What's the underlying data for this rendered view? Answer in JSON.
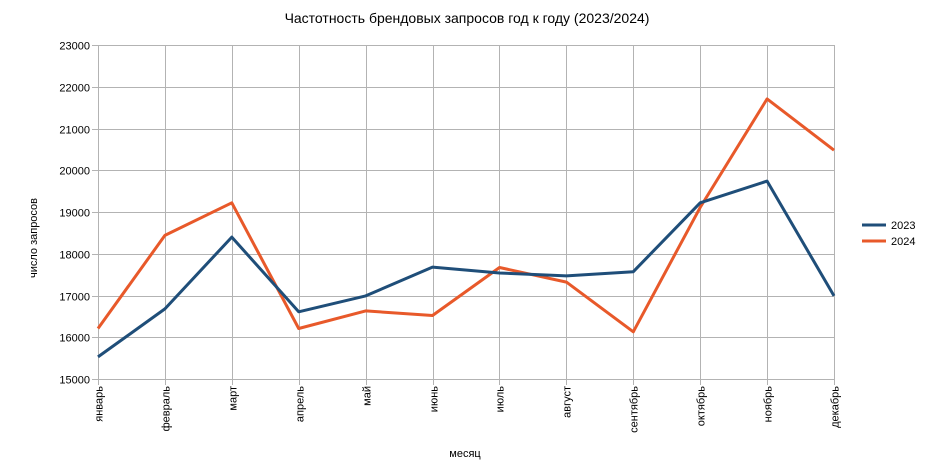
{
  "chart_data": {
    "type": "line",
    "title": "Частотность брендовых запросов год к году (2023/2024)",
    "xlabel": "месяц",
    "ylabel": "число запросов",
    "categories": [
      "январь",
      "февраль",
      "март",
      "апрель",
      "май",
      "июнь",
      "июль",
      "август",
      "сентябрь",
      "октябрь",
      "ноябрь",
      "декабрь"
    ],
    "ylim": [
      15000,
      23000
    ],
    "yticks": [
      15000,
      16000,
      17000,
      18000,
      19000,
      20000,
      21000,
      22000,
      23000
    ],
    "grid": true,
    "legend_position": "right",
    "series": [
      {
        "name": "2023",
        "color": "#1f4e79",
        "values": [
          15530,
          16680,
          18400,
          16610,
          16990,
          17680,
          17540,
          17470,
          17570,
          19220,
          19740,
          16990
        ]
      },
      {
        "name": "2024",
        "color": "#e8592a",
        "values": [
          16210,
          18440,
          19220,
          16210,
          16630,
          16520,
          17670,
          17320,
          16130,
          19110,
          21710,
          20480
        ]
      }
    ]
  }
}
